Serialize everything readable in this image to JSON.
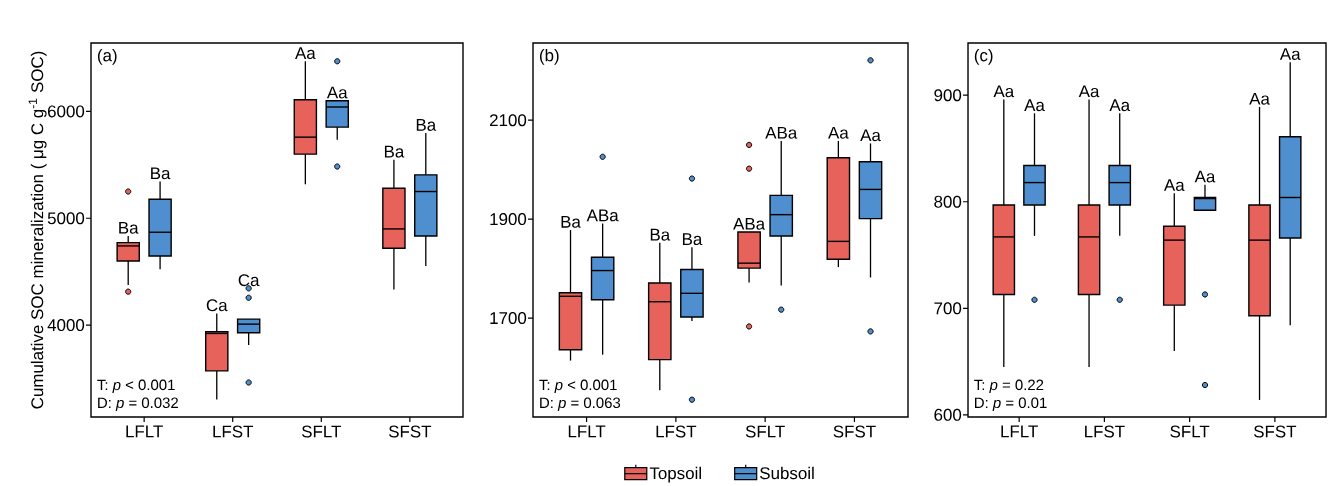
{
  "chart_data": [
    {
      "type": "box",
      "title": "(a)",
      "ylabel": "Cumulative SOC mineralization ( μg C g$^{-1}$ SOC)",
      "categories": [
        "LFLT",
        "LFST",
        "SFLT",
        "SFST"
      ],
      "ylim": [
        3140,
        6640
      ],
      "yticks": [
        4000,
        5000,
        6000
      ],
      "series": [
        {
          "color": "#e8625c",
          "boxes": [
            {
              "low": 4375,
              "q1": 4600,
              "median": 4741,
              "q3": 4772,
              "high": 4834,
              "outliers": [
                5250,
                4313
              ]
            },
            {
              "low": 3303,
              "q1": 3572,
              "median": 3922,
              "q3": 3938,
              "high": 4109
            },
            {
              "low": 5319,
              "q1": 5600,
              "median": 5759,
              "q3": 6109,
              "high": 6469
            },
            {
              "low": 4334,
              "q1": 4719,
              "median": 4900,
              "q3": 5281,
              "high": 5547
            }
          ]
        },
        {
          "color": "#4f8fcf",
          "boxes": [
            {
              "low": 4522,
              "q1": 4647,
              "median": 4869,
              "q3": 5178,
              "high": 5344
            },
            {
              "low": 3813,
              "q1": 3928,
              "median": 4009,
              "q3": 4056,
              "high": 4056,
              "outliers": [
                4344,
                4256,
                3463
              ]
            },
            {
              "low": 5734,
              "q1": 5853,
              "median": 6041,
              "q3": 6100,
              "high": 6100,
              "outliers": [
                6469,
                5484
              ]
            },
            {
              "low": 4553,
              "q1": 4834,
              "median": 5250,
              "q3": 5406,
              "high": 5797
            }
          ]
        }
      ],
      "annotations": [
        "Ba",
        "Ba",
        "Ca",
        "Ca",
        "Aa",
        "Aa",
        "Ba",
        "Ba",
        "T: *p* < 0.001",
        "D: *p* = 0.032"
      ]
    },
    {
      "type": "box",
      "title": "(b)",
      "legend": "bottom",
      "categories": [
        "LFLT",
        "LFST",
        "SFLT",
        "SFST"
      ],
      "ylim": [
        1500,
        2256
      ],
      "yticks": [
        1700,
        1900,
        2100
      ],
      "series": [
        {
          "name": "Topsoil",
          "color": "#e8625c",
          "boxes": [
            {
              "low": 1614,
              "q1": 1636,
              "median": 1744,
              "q3": 1751,
              "high": 1878
            },
            {
              "low": 1554,
              "q1": 1616,
              "median": 1733,
              "q3": 1771,
              "high": 1852
            },
            {
              "low": 1772,
              "q1": 1801,
              "median": 1811,
              "q3": 1874,
              "high": 1874,
              "outliers": [
                2050,
                2002,
                1683
              ]
            },
            {
              "low": 1803,
              "q1": 1819,
              "median": 1855,
              "q3": 2024,
              "high": 2058
            }
          ]
        },
        {
          "name": "Subsoil",
          "color": "#4f8fcf",
          "boxes": [
            {
              "low": 1626,
              "q1": 1737,
              "median": 1796,
              "q3": 1823,
              "high": 1891,
              "outliers": [
                2026
              ]
            },
            {
              "low": 1694,
              "q1": 1702,
              "median": 1750,
              "q3": 1798,
              "high": 1843,
              "outliers": [
                1982,
                1535
              ]
            },
            {
              "low": 1766,
              "q1": 1866,
              "median": 1909,
              "q3": 1948,
              "high": 2058,
              "outliers": [
                1717
              ]
            },
            {
              "low": 1782,
              "q1": 1901,
              "median": 1960,
              "q3": 2016,
              "high": 2053,
              "outliers": [
                2221,
                1673
              ]
            }
          ]
        }
      ],
      "annotations": [
        "Ba",
        "ABa",
        "Ba",
        "Ba",
        "ABa",
        "ABa",
        "Aa",
        "Aa",
        "T: *p* < 0.001",
        "D: *p* = 0.063"
      ]
    },
    {
      "type": "box",
      "title": "(c)",
      "categories": [
        "LFLT",
        "LFST",
        "SFLT",
        "SFST"
      ],
      "ylim": [
        598,
        949
      ],
      "yticks": [
        600,
        700,
        800,
        900
      ],
      "series": [
        {
          "color": "#e8625c",
          "boxes": [
            {
              "low": 645,
              "q1": 713,
              "median": 767,
              "q3": 797,
              "high": 896
            },
            {
              "low": 645,
              "q1": 713,
              "median": 767,
              "q3": 797,
              "high": 896
            },
            {
              "low": 660,
              "q1": 703,
              "median": 764,
              "q3": 777,
              "high": 808
            },
            {
              "low": 614,
              "q1": 693,
              "median": 764,
              "q3": 797,
              "high": 889
            }
          ]
        },
        {
          "color": "#4f8fcf",
          "boxes": [
            {
              "low": 768,
              "q1": 797,
              "median": 818,
              "q3": 834,
              "high": 883,
              "outliers": [
                708
              ]
            },
            {
              "low": 768,
              "q1": 797,
              "median": 818,
              "q3": 834,
              "high": 883,
              "outliers": [
                708
              ]
            },
            {
              "low": 792,
              "q1": 792,
              "median": 803,
              "q3": 804,
              "high": 816,
              "outliers": [
                713,
                628
              ]
            },
            {
              "low": 684,
              "q1": 766,
              "median": 804,
              "q3": 861,
              "high": 931
            }
          ]
        }
      ],
      "annotations": [
        "Aa",
        "Aa",
        "Aa",
        "Aa",
        "Aa",
        "Aa",
        "Aa",
        "Aa",
        "T: *p* = 0.22",
        "D: *p* = 0.01"
      ]
    }
  ]
}
